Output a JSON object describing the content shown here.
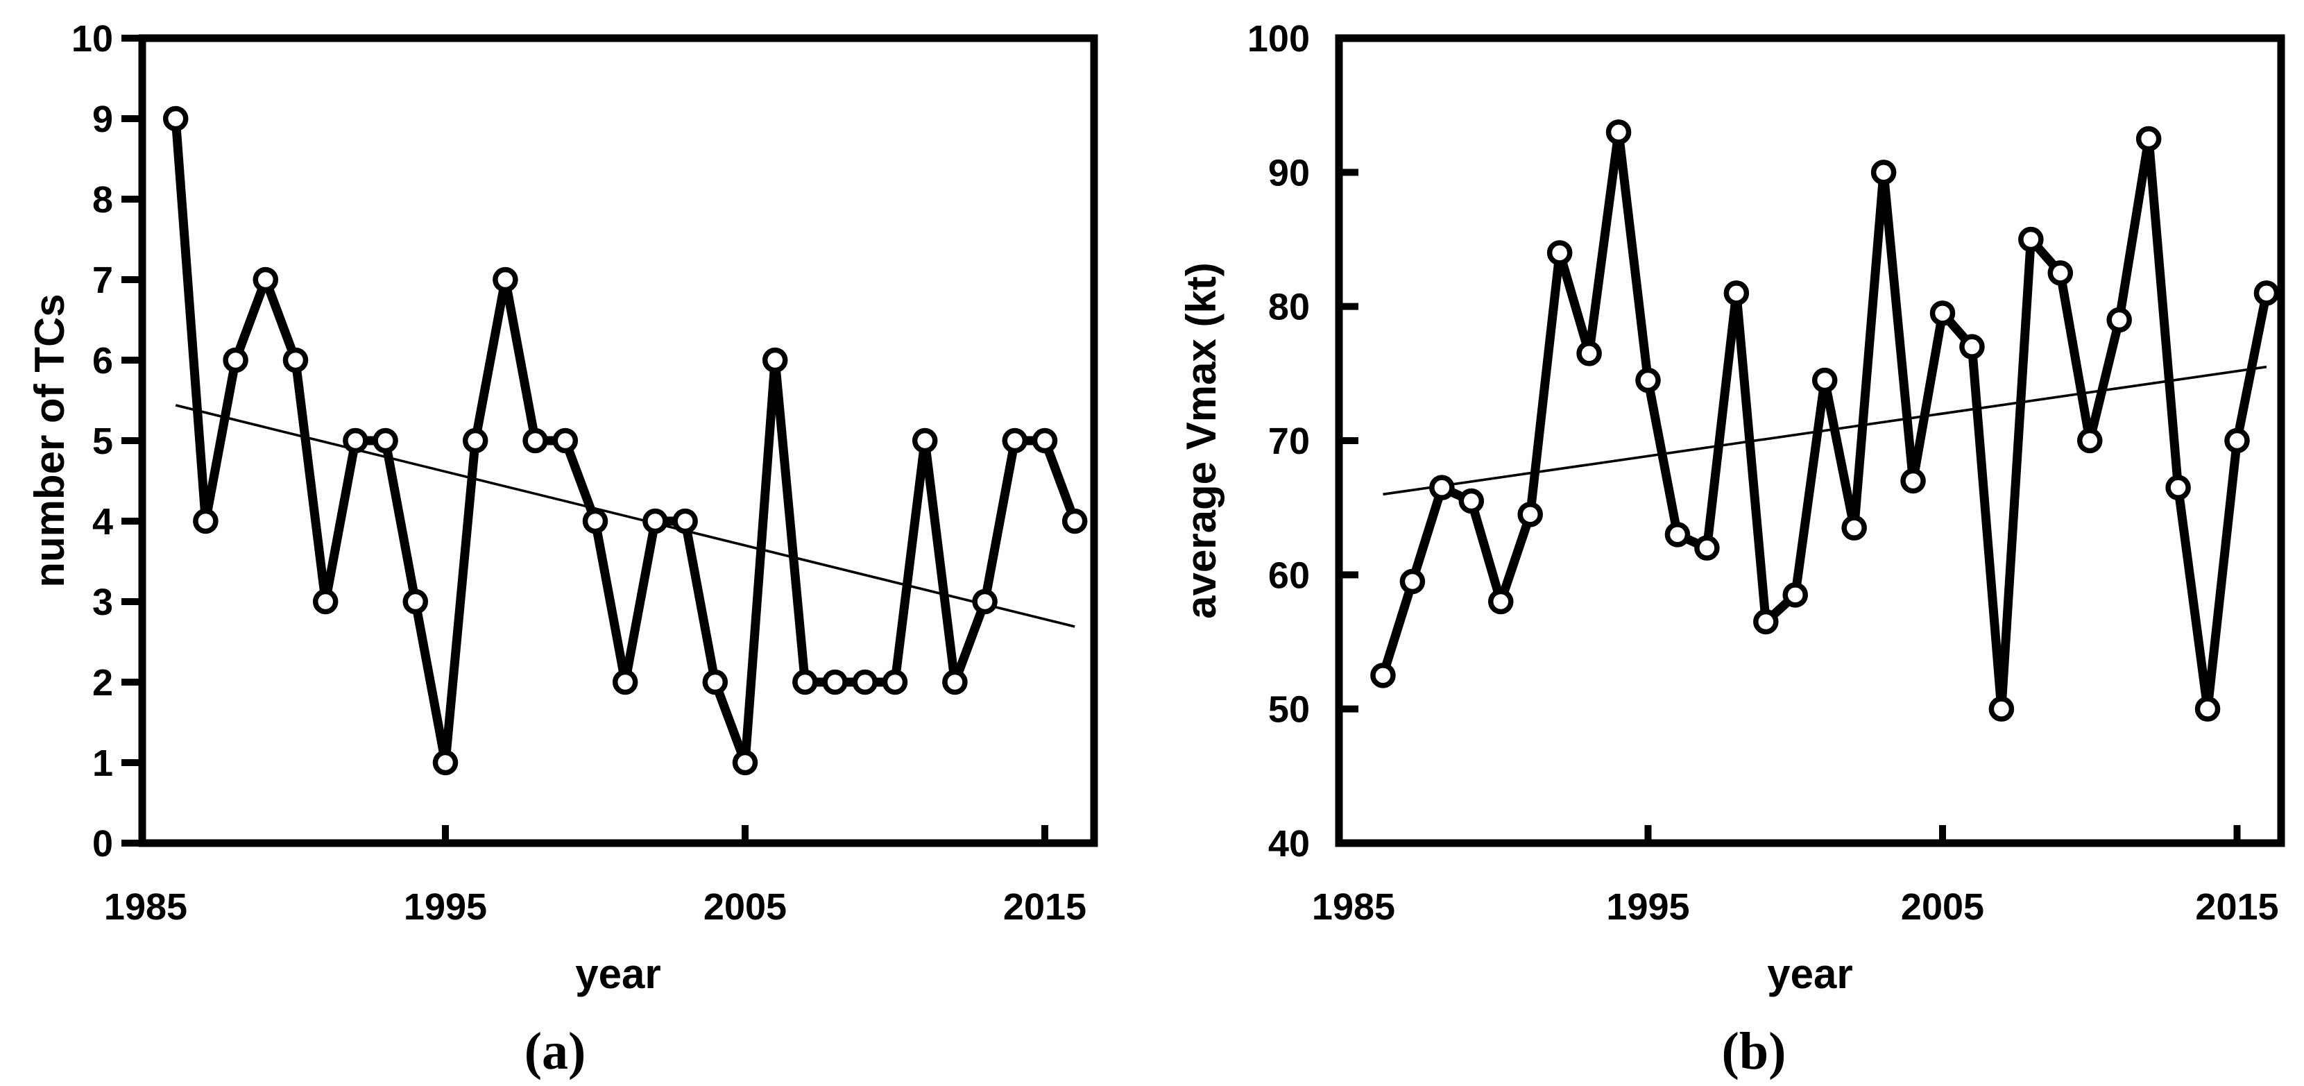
{
  "figure": {
    "background": "#ffffff",
    "ink_color": "#000000",
    "marker_fill": "#ffffff",
    "panel_count": 2
  },
  "chart_data": [
    {
      "type": "line",
      "panel_label": "(a)",
      "xlabel": "year",
      "ylabel": "number of TCs",
      "marker": "open-circle",
      "line_color": "#000000",
      "trend_color": "#000000",
      "grid": false,
      "legend": "none",
      "xlim": [
        1985,
        2017
      ],
      "ylim": [
        0,
        10
      ],
      "yticks": [
        0,
        1,
        2,
        3,
        4,
        5,
        6,
        7,
        8,
        9,
        10
      ],
      "ytick_labels": [
        "0",
        "1",
        "2",
        "3",
        "4",
        "5",
        "6",
        "7",
        "8",
        "9",
        "10"
      ],
      "xticks_marked": [
        1995,
        2005,
        2015
      ],
      "xtick_labels": [
        {
          "value": 1985,
          "label": "1985"
        },
        {
          "value": 1995,
          "label": "1995"
        },
        {
          "value": 2005,
          "label": "2005"
        },
        {
          "value": 2015,
          "label": "2015"
        }
      ],
      "x": [
        1986,
        1987,
        1988,
        1989,
        1990,
        1991,
        1992,
        1993,
        1994,
        1995,
        1996,
        1997,
        1998,
        1999,
        2000,
        2001,
        2002,
        2003,
        2004,
        2005,
        2006,
        2007,
        2008,
        2009,
        2010,
        2011,
        2012,
        2013,
        2014,
        2015,
        2016
      ],
      "values": [
        9,
        4,
        6,
        7,
        6,
        3,
        5,
        5,
        3,
        1,
        5,
        7,
        5,
        5,
        4,
        2,
        4,
        4,
        2,
        1,
        6,
        2,
        2,
        2,
        2,
        5,
        2,
        3,
        5,
        5,
        4
      ],
      "trendline": {
        "x1": 1986,
        "v1": 5.44,
        "x2": 2016,
        "v2": 2.69
      }
    },
    {
      "type": "line",
      "panel_label": "(b)",
      "xlabel": "year",
      "ylabel": "average Vmax (kt)",
      "marker": "open-circle",
      "line_color": "#000000",
      "trend_color": "#000000",
      "grid": false,
      "legend": "none",
      "xlim": [
        1985,
        2017
      ],
      "ylim": [
        40,
        100
      ],
      "yticks": [
        40,
        50,
        60,
        70,
        80,
        90,
        100
      ],
      "ytick_labels": [
        "40",
        "50",
        "60",
        "70",
        "80",
        "90",
        "100"
      ],
      "xticks_marked": [
        1995,
        2005,
        2015
      ],
      "xtick_labels": [
        {
          "value": 1985,
          "label": "1985"
        },
        {
          "value": 1995,
          "label": "1995"
        },
        {
          "value": 2005,
          "label": "2005"
        },
        {
          "value": 2015,
          "label": "2015"
        }
      ],
      "x": [
        1986,
        1987,
        1988,
        1989,
        1990,
        1991,
        1992,
        1993,
        1994,
        1995,
        1996,
        1997,
        1998,
        1999,
        2000,
        2001,
        2002,
        2003,
        2004,
        2005,
        2006,
        2007,
        2008,
        2009,
        2010,
        2011,
        2012,
        2013,
        2014,
        2015,
        2016
      ],
      "values": [
        52.5,
        59.5,
        66.5,
        65.5,
        58,
        64.5,
        84,
        76.5,
        93,
        74.5,
        63,
        62,
        81,
        56.5,
        58.5,
        74.5,
        63.5,
        90,
        67,
        79.5,
        77,
        50,
        85,
        82.5,
        70,
        79,
        92.5,
        66.5,
        50,
        70,
        81
      ],
      "trendline": {
        "x1": 1986,
        "v1": 66.0,
        "x2": 2016,
        "v2": 75.5
      }
    }
  ]
}
